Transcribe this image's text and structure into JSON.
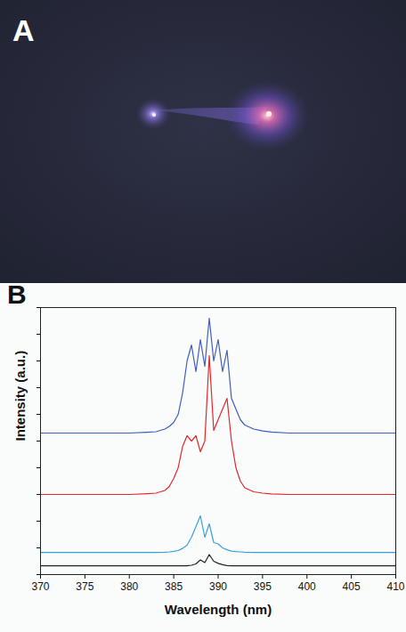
{
  "image_panel": {
    "label": "A"
  },
  "chart_data": {
    "type": "line",
    "panel_label": "B",
    "x_label": "Wavelength (nm)",
    "y_label": "Intensity (a.u.)",
    "xlim": [
      370,
      410
    ],
    "xticks": [
      370,
      375,
      380,
      385,
      390,
      395,
      400,
      405,
      410
    ],
    "ylim": [
      0,
      100
    ],
    "yticks": [
      0,
      10,
      20,
      30,
      40,
      50,
      60,
      70,
      80,
      90,
      100
    ],
    "tick_labels": "x",
    "x": [
      370,
      372,
      374,
      376,
      378,
      380,
      382,
      383,
      384,
      384.5,
      385,
      385.5,
      386,
      386.5,
      387,
      387.5,
      388,
      388.5,
      389,
      389.5,
      390,
      390.5,
      391,
      391.5,
      392,
      392.5,
      393,
      394,
      395,
      396,
      398,
      400,
      402,
      404,
      406,
      408,
      410
    ],
    "series": [
      {
        "color": "#3f5dbf",
        "values": [
          53,
          53,
          53,
          53,
          53,
          53,
          53.3,
          53.5,
          54.5,
          55.5,
          57,
          60,
          68,
          80,
          86,
          76,
          88,
          78,
          96,
          80,
          88,
          76,
          84,
          66,
          62,
          58,
          56,
          54.5,
          53.8,
          53.4,
          53,
          53,
          53,
          53,
          53,
          53,
          53
        ]
      },
      {
        "color": "#e0282f",
        "values": [
          30,
          30,
          30,
          30,
          30,
          30,
          30.3,
          30.5,
          31.5,
          33,
          36,
          40,
          48,
          52,
          50,
          52,
          46,
          50,
          82,
          54,
          58,
          62,
          66,
          50,
          40,
          35,
          32.5,
          31,
          30.5,
          30.2,
          30,
          30,
          30,
          30,
          30,
          30,
          30
        ]
      },
      {
        "color": "#3a9fe0",
        "values": [
          8.3,
          8.3,
          8.3,
          8.3,
          8.3,
          8.3,
          8.3,
          8.3,
          8.4,
          8.5,
          8.7,
          9,
          9.8,
          11,
          14,
          18,
          22,
          14,
          19,
          12,
          11.5,
          10,
          9.3,
          8.8,
          8.6,
          8.5,
          8.4,
          8.3,
          8.3,
          8.3,
          8.3,
          8.3,
          8.3,
          8.3,
          8.3,
          8.3,
          8.3
        ]
      },
      {
        "color": "#222222",
        "values": [
          3.3,
          3.3,
          3.3,
          3.3,
          3.3,
          3.3,
          3.3,
          3.3,
          3.3,
          3.3,
          3.3,
          3.3,
          3.3,
          3.3,
          3.5,
          4,
          5.5,
          4.5,
          7.5,
          5,
          4.2,
          3.7,
          3.4,
          3.3,
          3.3,
          3.3,
          3.3,
          3.3,
          3.3,
          3.3,
          3.3,
          3.3,
          3.3,
          3.3,
          3.3,
          3.3,
          3.3
        ]
      }
    ]
  }
}
